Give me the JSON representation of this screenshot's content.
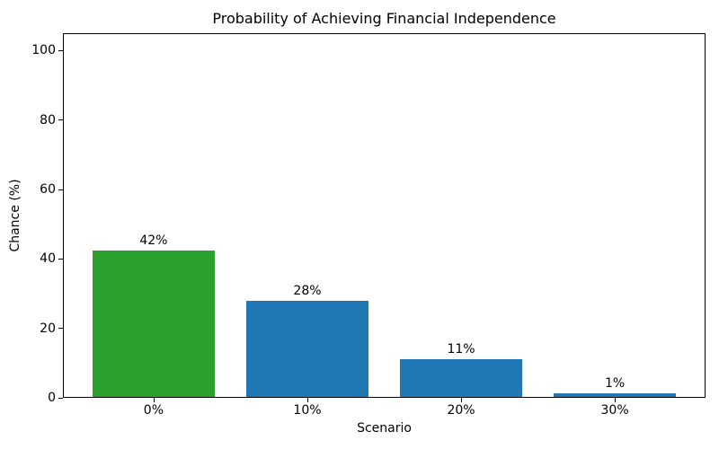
{
  "chart_data": {
    "type": "bar",
    "title": "Probability of Achieving Financial Independence",
    "xlabel": "Scenario",
    "ylabel": "Chance (%)",
    "categories": [
      "0%",
      "10%",
      "20%",
      "30%"
    ],
    "values": [
      42.5,
      28,
      11,
      1.4
    ],
    "bar_labels": [
      "42%",
      "28%",
      "11%",
      "1%"
    ],
    "bar_colors": [
      "#2ca02c",
      "#1f77b4",
      "#1f77b4",
      "#1f77b4"
    ],
    "yticks": [
      0,
      20,
      40,
      60,
      80,
      100
    ],
    "ylim": [
      0,
      105
    ],
    "xlim": [
      -0.59,
      3.59
    ],
    "bar_width_fraction": 0.8,
    "grid": false,
    "legend_position": "none",
    "background_color": "#ffffff",
    "text_color": "#000000",
    "spine_color": "#000000"
  }
}
